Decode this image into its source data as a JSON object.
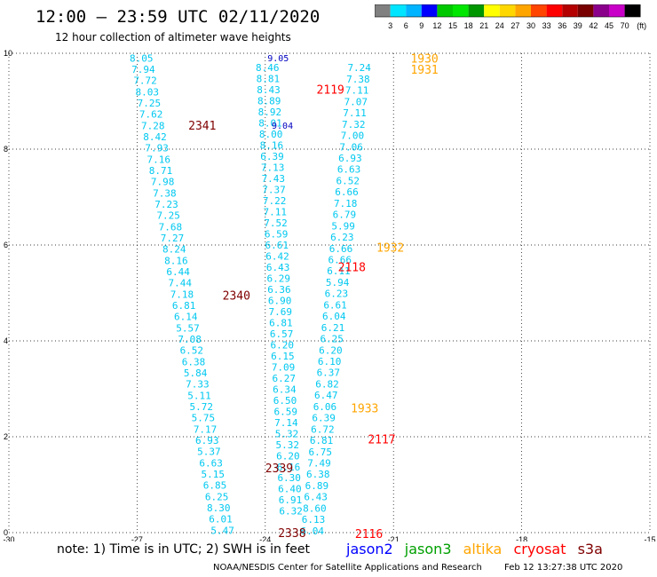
{
  "header": {
    "title": "12:00 – 23:59 UTC 02/11/2020",
    "subtitle": "12 hour collection of altimeter wave heights"
  },
  "color_scale": {
    "labels": [
      "3",
      "6",
      "9",
      "12",
      "15",
      "18",
      "21",
      "24",
      "27",
      "30",
      "33",
      "36",
      "39",
      "42",
      "45",
      "70"
    ],
    "unit": "(ft)",
    "colors": [
      "#808080",
      "#00e5ff",
      "#00b4ff",
      "#0000ff",
      "#00c800",
      "#00e600",
      "#009600",
      "#ffff00",
      "#ffd700",
      "#ffa500",
      "#ff4500",
      "#ff0000",
      "#b40000",
      "#780000",
      "#8b008b",
      "#c800c8",
      "#000000"
    ]
  },
  "footer": {
    "note": "note: 1) Time is in UTC; 2) SWH is in feet",
    "credit": "NOAA/NESDIS Center for Satellite Applications and Research",
    "timestamp": "Feb 12 13:27:38 UTC 2020"
  },
  "legend": [
    {
      "name": "jason2",
      "color": "#0000ff"
    },
    {
      "name": "jason3",
      "color": "#00a000"
    },
    {
      "name": "altika",
      "color": "#ffa500"
    },
    {
      "name": "cryosat",
      "color": "#ff0000"
    },
    {
      "name": "s3a",
      "color": "#800000"
    }
  ],
  "chart_data": {
    "type": "scatter",
    "xlim": [
      -30,
      -15
    ],
    "ylim": [
      0,
      10
    ],
    "x_ticks": [
      "-30",
      "-27",
      "-24",
      "-21",
      "-18",
      "-15"
    ],
    "x_tick_values": [
      -30,
      -27,
      -24,
      -21,
      -18,
      -15
    ],
    "y_ticks": [
      "0",
      "2",
      "4",
      "6",
      "8",
      "10"
    ],
    "y_tick_values": [
      0,
      2,
      4,
      6,
      8,
      10
    ],
    "grid": true,
    "tracks": [
      {
        "color": "#00c8f0",
        "start": [
          -26.9,
          9.9
        ],
        "end": [
          -25.0,
          0.05
        ],
        "values": [
          "8.05",
          "7.94",
          "7.72",
          "8.03",
          "7.25",
          "7.62",
          "7.28",
          "8.42",
          "7.93",
          "7.16",
          "8.71",
          "7.98",
          "7.38",
          "7.23",
          "7.25",
          "7.68",
          "7.27",
          "8.24",
          "8.16",
          "6.44",
          "7.44",
          "7.18",
          "6.81",
          "6.14",
          "5.57",
          "7.08",
          "6.52",
          "6.38",
          "5.84",
          "7.33",
          "5.11",
          "5.72",
          "5.75",
          "7.17",
          "6.93",
          "5.37",
          "6.63",
          "5.15",
          "6.85",
          "6.25",
          "8.30",
          "6.01",
          "5.47"
        ]
      },
      {
        "color": "#00c8f0",
        "start": [
          -23.95,
          9.7
        ],
        "end": [
          -23.4,
          0.45
        ],
        "values": [
          "8.46",
          "8.81",
          "8.43",
          "8.89",
          "8.92",
          "8.01",
          "8.00",
          "8.16",
          "6.39",
          "7.13",
          "7.43",
          "7.37",
          "7.22",
          "7.11",
          "7.52",
          "6.59",
          "6.61",
          "6.42",
          "6.43",
          "6.29",
          "6.36",
          "6.90",
          "7.69",
          "6.81",
          "6.57",
          "6.20",
          "6.15",
          "7.09",
          "6.27",
          "6.34",
          "6.50",
          "6.59",
          "7.14",
          "5.32",
          "5.32",
          "6.20",
          "6.16",
          "6.30",
          "6.40",
          "6.91",
          "6.32"
        ]
      },
      {
        "color": "#00c8f0",
        "start": [
          -21.8,
          9.7
        ],
        "end": [
          -22.9,
          0.04
        ],
        "values": [
          "7.24",
          "7.38",
          "7.11",
          "7.07",
          "7.11",
          "7.32",
          "7.00",
          "7.06",
          "6.93",
          "6.63",
          "6.52",
          "6.66",
          "7.18",
          "6.79",
          "5.99",
          "6.23",
          "6.66",
          "6.66",
          "6.11",
          "5.94",
          "6.23",
          "6.61",
          "6.04",
          "6.21",
          "6.25",
          "6.20",
          "6.10",
          "6.37",
          "6.82",
          "6.47",
          "6.06",
          "6.39",
          "6.72",
          "6.81",
          "6.75",
          "7.49",
          "6.38",
          "6.89",
          "6.43",
          "8.60",
          "6.13",
          "6.04"
        ]
      }
    ],
    "annotations": [
      {
        "text": "9.05",
        "x": -23.95,
        "y": 9.93,
        "color": "#0000c0",
        "size": 10
      },
      {
        "text": "9.04",
        "x": -23.85,
        "y": 8.52,
        "color": "#0000c0",
        "size": 10
      },
      {
        "text": "1930",
        "x": -20.6,
        "y": 9.9,
        "color": "#ffa500",
        "size": 13
      },
      {
        "text": "1931",
        "x": -20.6,
        "y": 9.67,
        "color": "#ffa500",
        "size": 13
      },
      {
        "text": "2119",
        "x": -22.8,
        "y": 9.25,
        "color": "#ff0000",
        "size": 13
      },
      {
        "text": "2341",
        "x": -25.8,
        "y": 8.5,
        "color": "#800000",
        "size": 13
      },
      {
        "text": "1932",
        "x": -21.4,
        "y": 5.95,
        "color": "#ffa500",
        "size": 13
      },
      {
        "text": "2118",
        "x": -22.3,
        "y": 5.55,
        "color": "#ff0000",
        "size": 13
      },
      {
        "text": "2340",
        "x": -25.0,
        "y": 4.95,
        "color": "#800000",
        "size": 13
      },
      {
        "text": "1933",
        "x": -22.0,
        "y": 2.6,
        "color": "#ffa500",
        "size": 13
      },
      {
        "text": "2117",
        "x": -21.6,
        "y": 1.95,
        "color": "#ff0000",
        "size": 13
      },
      {
        "text": "2339",
        "x": -24.0,
        "y": 1.35,
        "color": "#800000",
        "size": 13
      },
      {
        "text": "2338",
        "x": -23.7,
        "y": 0.0,
        "color": "#800000",
        "size": 13
      },
      {
        "text": "2116",
        "x": -21.9,
        "y": -0.02,
        "color": "#ff0000",
        "size": 13
      }
    ]
  }
}
